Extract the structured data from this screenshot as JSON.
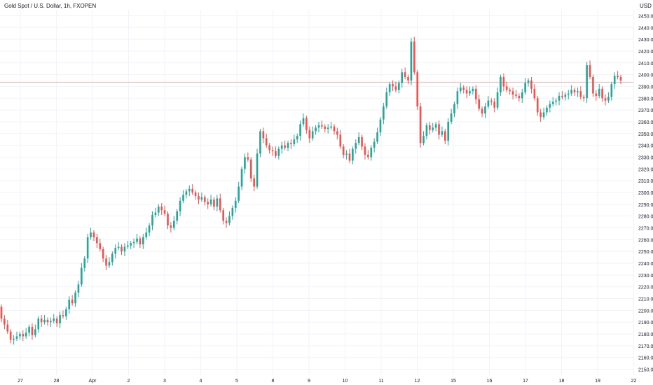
{
  "header": {
    "title": "Gold Spot / U.S. Dollar, 1h, FXOPEN"
  },
  "colors": {
    "up": "#26a69a",
    "down": "#ef5350",
    "grid": "#f0f3fa",
    "axis_text": "#131722",
    "price_line": "#f7b2b2"
  },
  "chart_data": {
    "type": "candlestick",
    "title": "Gold Spot / U.S. Dollar, 1h, FXOPEN",
    "price_unit": "USD",
    "ylim": [
      2145,
      2455
    ],
    "y_ticks": [
      2450,
      2440,
      2430,
      2420,
      2410,
      2400,
      2390,
      2380,
      2370,
      2360,
      2350,
      2340,
      2330,
      2320,
      2310,
      2300,
      2290,
      2280,
      2270,
      2260,
      2250,
      2240,
      2230,
      2220,
      2210,
      2200,
      2190,
      2180,
      2170,
      2160,
      2150
    ],
    "y_tick_labels": [
      "2450.00",
      "2440.00",
      "2430.00",
      "2420.00",
      "2410.00",
      "2400.00",
      "2390.00",
      "2380.00",
      "2370.00",
      "2360.00",
      "2350.00",
      "2340.00",
      "2330.00",
      "2320.00",
      "2310.00",
      "2300.00",
      "2290.00",
      "2280.00",
      "2270.00",
      "2260.00",
      "2250.00",
      "2240.00",
      "2230.00",
      "2220.00",
      "2210.00",
      "2200.00",
      "2190.00",
      "2180.00",
      "2170.00",
      "2160.00",
      "2150.00"
    ],
    "x_ticks": [
      "27",
      "28",
      "Apr",
      "2",
      "3",
      "4",
      "5",
      "8",
      "9",
      "10",
      "11",
      "12",
      "15",
      "16",
      "17",
      "18",
      "19",
      "22"
    ],
    "grid": true,
    "current_price_line": 2393.5,
    "close_series": [
      2193,
      2188,
      2182,
      2175,
      2176,
      2178,
      2180,
      2178,
      2181,
      2186,
      2179,
      2184,
      2193,
      2190,
      2192,
      2190,
      2191,
      2193,
      2189,
      2196,
      2195,
      2201,
      2209,
      2206,
      2215,
      2222,
      2236,
      2244,
      2262,
      2266,
      2262,
      2257,
      2252,
      2244,
      2238,
      2241,
      2248,
      2253,
      2254,
      2250,
      2254,
      2255,
      2257,
      2258,
      2261,
      2256,
      2262,
      2266,
      2272,
      2281,
      2283,
      2288,
      2285,
      2282,
      2272,
      2270,
      2276,
      2284,
      2293,
      2298,
      2301,
      2303,
      2300,
      2297,
      2294,
      2296,
      2292,
      2290,
      2294,
      2288,
      2295,
      2285,
      2276,
      2274,
      2280,
      2287,
      2293,
      2305,
      2320,
      2330,
      2328,
      2312,
      2305,
      2333,
      2352,
      2346,
      2340,
      2336,
      2335,
      2331,
      2337,
      2340,
      2338,
      2342,
      2341,
      2345,
      2348,
      2358,
      2363,
      2353,
      2346,
      2352,
      2355,
      2357,
      2356,
      2354,
      2355,
      2356,
      2352,
      2349,
      2339,
      2332,
      2333,
      2327,
      2337,
      2342,
      2347,
      2339,
      2332,
      2330,
      2338,
      2343,
      2351,
      2362,
      2373,
      2385,
      2392,
      2390,
      2387,
      2393,
      2402,
      2398,
      2395,
      2428,
      2402,
      2373,
      2342,
      2348,
      2357,
      2353,
      2355,
      2358,
      2349,
      2352,
      2344,
      2360,
      2367,
      2375,
      2386,
      2389,
      2387,
      2384,
      2386,
      2388,
      2379,
      2371,
      2367,
      2373,
      2378,
      2377,
      2372,
      2385,
      2398,
      2390,
      2387,
      2386,
      2383,
      2382,
      2380,
      2385,
      2393,
      2395,
      2388,
      2380,
      2368,
      2364,
      2368,
      2372,
      2375,
      2377,
      2378,
      2382,
      2381,
      2383,
      2384,
      2387,
      2385,
      2386,
      2381,
      2380,
      2408,
      2398,
      2384,
      2382,
      2388,
      2380,
      2378,
      2381,
      2392,
      2399,
      2398,
      2395
    ],
    "open_series": [
      2203,
      2193,
      2188,
      2182,
      2175,
      2176,
      2178,
      2180,
      2178,
      2181,
      2186,
      2179,
      2184,
      2193,
      2190,
      2192,
      2190,
      2191,
      2193,
      2189,
      2196,
      2195,
      2201,
      2209,
      2206,
      2215,
      2222,
      2236,
      2244,
      2262,
      2266,
      2262,
      2257,
      2252,
      2244,
      2238,
      2241,
      2248,
      2253,
      2254,
      2250,
      2254,
      2255,
      2257,
      2258,
      2261,
      2256,
      2262,
      2266,
      2272,
      2281,
      2283,
      2288,
      2285,
      2282,
      2272,
      2270,
      2276,
      2284,
      2293,
      2298,
      2301,
      2303,
      2300,
      2297,
      2294,
      2296,
      2292,
      2290,
      2294,
      2288,
      2295,
      2285,
      2276,
      2274,
      2280,
      2287,
      2293,
      2305,
      2320,
      2330,
      2328,
      2312,
      2305,
      2333,
      2352,
      2346,
      2340,
      2336,
      2335,
      2331,
      2337,
      2340,
      2338,
      2342,
      2341,
      2345,
      2348,
      2358,
      2363,
      2353,
      2346,
      2352,
      2355,
      2357,
      2356,
      2354,
      2355,
      2356,
      2352,
      2349,
      2339,
      2332,
      2333,
      2327,
      2337,
      2342,
      2347,
      2339,
      2332,
      2330,
      2338,
      2343,
      2351,
      2362,
      2373,
      2385,
      2392,
      2390,
      2387,
      2393,
      2402,
      2398,
      2395,
      2428,
      2402,
      2373,
      2342,
      2348,
      2357,
      2353,
      2355,
      2358,
      2349,
      2352,
      2344,
      2360,
      2367,
      2375,
      2386,
      2389,
      2387,
      2384,
      2386,
      2388,
      2379,
      2371,
      2367,
      2373,
      2378,
      2377,
      2372,
      2385,
      2398,
      2390,
      2387,
      2386,
      2383,
      2382,
      2380,
      2385,
      2393,
      2395,
      2388,
      2380,
      2368,
      2364,
      2368,
      2372,
      2375,
      2377,
      2378,
      2382,
      2381,
      2383,
      2384,
      2387,
      2385,
      2386,
      2381,
      2380,
      2408,
      2398,
      2384,
      2382,
      2388,
      2380,
      2378,
      2381,
      2392,
      2399,
      2398
    ]
  }
}
